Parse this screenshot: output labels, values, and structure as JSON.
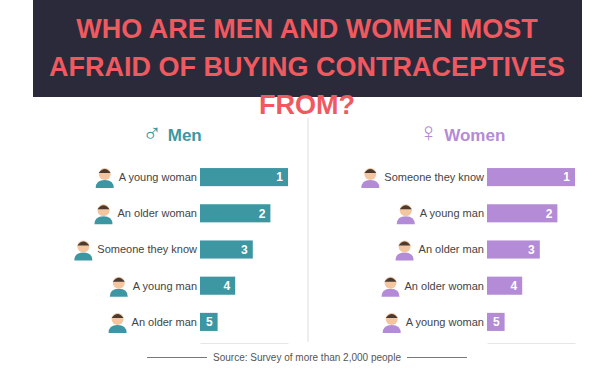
{
  "title": "WHO ARE MEN AND WOMEN MOST AFRAID OF BUYING CONTRACEPTIVES FROM?",
  "source": "Source: Survey of more than 2,000 people",
  "chart_data": [
    {
      "type": "bar",
      "title": "♂ Men",
      "orientation": "horizontal",
      "data_labels": true,
      "tick_labels": false,
      "categories": [
        "A young woman",
        "An older woman",
        "Someone they know",
        "A young man",
        "An older man"
      ],
      "values": [
        1,
        2,
        3,
        4,
        5
      ],
      "color": "#3d97a3",
      "xlim": [
        6,
        1
      ]
    },
    {
      "type": "bar",
      "title": "♀ Women",
      "orientation": "horizontal",
      "data_labels": true,
      "tick_labels": false,
      "categories": [
        "Someone they know",
        "A young man",
        "An older man",
        "An older woman",
        "A young woman"
      ],
      "values": [
        1,
        2,
        3,
        4,
        5
      ],
      "color": "#b48bd6",
      "xlim": [
        6,
        1
      ]
    }
  ]
}
